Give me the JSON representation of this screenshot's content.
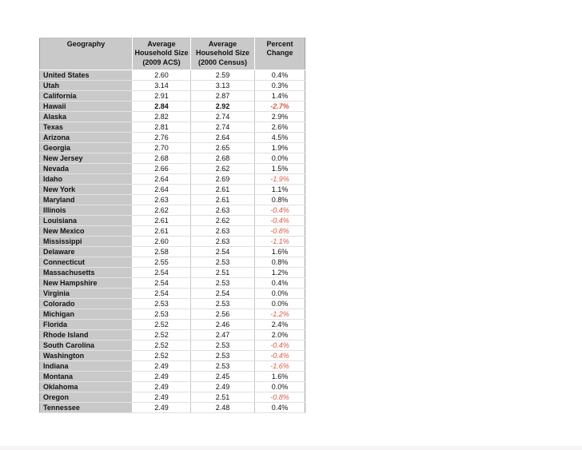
{
  "table": {
    "headers": [
      "Geography",
      "Average\nHousehold Size\n(2009 ACS)",
      "Average\nHousehold Size\n(2000 Census)",
      "Percent\nChange"
    ],
    "rows": [
      {
        "geography": "United States",
        "acs2009": "2.60",
        "census2000": "2.59",
        "pct_change": "0.4%",
        "negative": false,
        "bold": false
      },
      {
        "geography": "Utah",
        "acs2009": "3.14",
        "census2000": "3.13",
        "pct_change": "0.3%",
        "negative": false,
        "bold": false
      },
      {
        "geography": "California",
        "acs2009": "2.91",
        "census2000": "2.87",
        "pct_change": "1.4%",
        "negative": false,
        "bold": false
      },
      {
        "geography": "Hawaii",
        "acs2009": "2.84",
        "census2000": "2.92",
        "pct_change": "-2.7%",
        "negative": true,
        "bold": true
      },
      {
        "geography": "Alaska",
        "acs2009": "2.82",
        "census2000": "2.74",
        "pct_change": "2.9%",
        "negative": false,
        "bold": false
      },
      {
        "geography": "Texas",
        "acs2009": "2.81",
        "census2000": "2.74",
        "pct_change": "2.6%",
        "negative": false,
        "bold": false
      },
      {
        "geography": "Arizona",
        "acs2009": "2.76",
        "census2000": "2.64",
        "pct_change": "4.5%",
        "negative": false,
        "bold": false
      },
      {
        "geography": "Georgia",
        "acs2009": "2.70",
        "census2000": "2.65",
        "pct_change": "1.9%",
        "negative": false,
        "bold": false
      },
      {
        "geography": "New Jersey",
        "acs2009": "2.68",
        "census2000": "2.68",
        "pct_change": "0.0%",
        "negative": false,
        "bold": false
      },
      {
        "geography": "Nevada",
        "acs2009": "2.66",
        "census2000": "2.62",
        "pct_change": "1.5%",
        "negative": false,
        "bold": false
      },
      {
        "geography": "Idaho",
        "acs2009": "2.64",
        "census2000": "2.69",
        "pct_change": "-1.9%",
        "negative": true,
        "bold": false
      },
      {
        "geography": "New York",
        "acs2009": "2.64",
        "census2000": "2.61",
        "pct_change": "1.1%",
        "negative": false,
        "bold": false
      },
      {
        "geography": "Maryland",
        "acs2009": "2.63",
        "census2000": "2.61",
        "pct_change": "0.8%",
        "negative": false,
        "bold": false
      },
      {
        "geography": "Illinois",
        "acs2009": "2.62",
        "census2000": "2.63",
        "pct_change": "-0.4%",
        "negative": true,
        "bold": false
      },
      {
        "geography": "Louisiana",
        "acs2009": "2.61",
        "census2000": "2.62",
        "pct_change": "-0.4%",
        "negative": true,
        "bold": false
      },
      {
        "geography": "New Mexico",
        "acs2009": "2.61",
        "census2000": "2.63",
        "pct_change": "-0.8%",
        "negative": true,
        "bold": false
      },
      {
        "geography": "Mississippi",
        "acs2009": "2.60",
        "census2000": "2.63",
        "pct_change": "-1.1%",
        "negative": true,
        "bold": false
      },
      {
        "geography": "Delaware",
        "acs2009": "2.58",
        "census2000": "2.54",
        "pct_change": "1.6%",
        "negative": false,
        "bold": false
      },
      {
        "geography": "Connecticut",
        "acs2009": "2.55",
        "census2000": "2.53",
        "pct_change": "0.8%",
        "negative": false,
        "bold": false
      },
      {
        "geography": "Massachusetts",
        "acs2009": "2.54",
        "census2000": "2.51",
        "pct_change": "1.2%",
        "negative": false,
        "bold": false
      },
      {
        "geography": "New Hampshire",
        "acs2009": "2.54",
        "census2000": "2.53",
        "pct_change": "0.4%",
        "negative": false,
        "bold": false
      },
      {
        "geography": "Virginia",
        "acs2009": "2.54",
        "census2000": "2.54",
        "pct_change": "0.0%",
        "negative": false,
        "bold": false
      },
      {
        "geography": "Colorado",
        "acs2009": "2.53",
        "census2000": "2.53",
        "pct_change": "0.0%",
        "negative": false,
        "bold": false
      },
      {
        "geography": "Michigan",
        "acs2009": "2.53",
        "census2000": "2.56",
        "pct_change": "-1.2%",
        "negative": true,
        "bold": false
      },
      {
        "geography": "Florida",
        "acs2009": "2.52",
        "census2000": "2.46",
        "pct_change": "2.4%",
        "negative": false,
        "bold": false
      },
      {
        "geography": "Rhode Island",
        "acs2009": "2.52",
        "census2000": "2.47",
        "pct_change": "2.0%",
        "negative": false,
        "bold": false
      },
      {
        "geography": "South Carolina",
        "acs2009": "2.52",
        "census2000": "2.53",
        "pct_change": "-0.4%",
        "negative": true,
        "bold": false
      },
      {
        "geography": "Washington",
        "acs2009": "2.52",
        "census2000": "2.53",
        "pct_change": "-0.4%",
        "negative": true,
        "bold": false
      },
      {
        "geography": "Indiana",
        "acs2009": "2.49",
        "census2000": "2.53",
        "pct_change": "-1.6%",
        "negative": true,
        "bold": false
      },
      {
        "geography": "Montana",
        "acs2009": "2.49",
        "census2000": "2.45",
        "pct_change": "1.6%",
        "negative": false,
        "bold": false
      },
      {
        "geography": "Oklahoma",
        "acs2009": "2.49",
        "census2000": "2.49",
        "pct_change": "0.0%",
        "negative": false,
        "bold": false
      },
      {
        "geography": "Oregon",
        "acs2009": "2.49",
        "census2000": "2.51",
        "pct_change": "-0.8%",
        "negative": true,
        "bold": false
      },
      {
        "geography": "Tennessee",
        "acs2009": "2.49",
        "census2000": "2.48",
        "pct_change": "0.4%",
        "negative": false,
        "bold": false
      }
    ]
  },
  "colors": {
    "header_background": "#c9c9c9",
    "geography_cell_background": "#c9c9c9",
    "data_cell_background": "#ffffff",
    "negative_value_color": "#d95b43",
    "text_color": "#111111",
    "outer_border": "#9e9e9e",
    "inner_border": "#c8c8c8"
  }
}
